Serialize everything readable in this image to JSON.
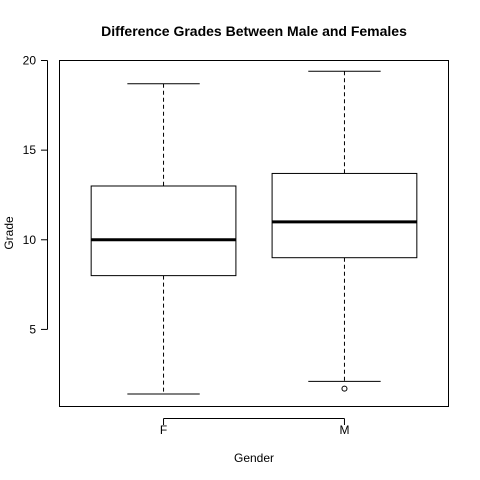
{
  "chart_data": {
    "type": "boxplot",
    "title": "Difference Grades Between Male and Females",
    "xlabel": "Gender",
    "ylabel": "Grade",
    "ylim": [
      0.7,
      20.0
    ],
    "yticks": [
      5,
      10,
      15,
      20
    ],
    "grid": false,
    "legend": "none",
    "categories": [
      "F",
      "M"
    ],
    "boxes": [
      {
        "category": "F",
        "whisker_low": 1.4,
        "q1": 8.0,
        "median": 10.0,
        "q3": 13.0,
        "whisker_high": 18.7,
        "outliers": []
      },
      {
        "category": "M",
        "whisker_low": 2.1,
        "q1": 9.0,
        "median": 11.0,
        "q3": 13.7,
        "whisker_high": 19.4,
        "outliers": [
          1.7
        ]
      }
    ],
    "colors": {
      "box_fill": "#ffffff",
      "stroke": "#000000"
    }
  }
}
